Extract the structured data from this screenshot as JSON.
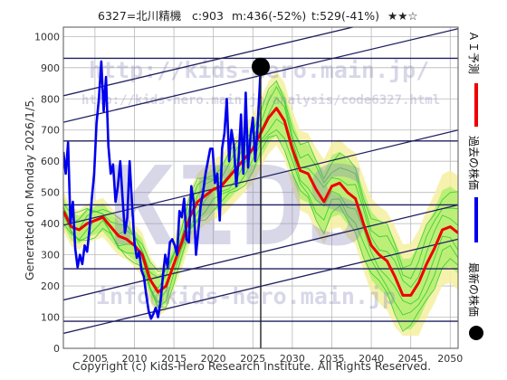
{
  "header": {
    "code_name": "6327=北川精機",
    "current": "c:903",
    "median": "m:436(-52%)",
    "target": "t:529(-41%)",
    "stars": "★★☆"
  },
  "side_label": "Generated on Monday 2026/1/5.",
  "copyright": "Copyright (c) Kids-Hero Research Institute. All Rights Reserved.",
  "watermarks": {
    "url_main": "http://kids-hero.main.jp/",
    "url_analysis": "http://kids-hero.main.jp/analysis/code6327.html",
    "big": "KIDS",
    "mail": "info@kids-hero.main.jp"
  },
  "legend": {
    "ai_forecast": "ＡＩ予測",
    "past_price": "過去の株価",
    "latest_price": "最新の株価"
  },
  "colors": {
    "ai_forecast": "#ee0000",
    "past_price": "#0000ee",
    "latest_marker": "#000000",
    "band_green": "#33cc33",
    "band_fill": "#aaee66",
    "band_yellow": "#f4f0a0",
    "channel": "#202060",
    "grid": "#b8b8b8"
  },
  "chart_data": {
    "type": "line",
    "xlim": [
      2001,
      2051
    ],
    "ylim": [
      0,
      1030
    ],
    "x_ticks": [
      2005,
      2010,
      2015,
      2020,
      2025,
      2030,
      2035,
      2040,
      2045,
      2050
    ],
    "y_ticks": [
      0,
      100,
      200,
      300,
      400,
      500,
      600,
      700,
      800,
      900,
      1000
    ],
    "grid": true,
    "current_marker": {
      "x": 2026.0,
      "y": 903
    },
    "today_x": 2026.0,
    "horizontal_levels": [
      930,
      665,
      460,
      255,
      87
    ],
    "channels": [
      {
        "x": [
          2001,
          2051
        ],
        "y": [
          810,
          1110
        ]
      },
      {
        "x": [
          2001,
          2051
        ],
        "y": [
          725,
          1025
        ]
      },
      {
        "x": [
          2001,
          2051
        ],
        "y": [
          395,
          700
        ]
      },
      {
        "x": [
          2001,
          2051
        ],
        "y": [
          155,
          460
        ]
      },
      {
        "x": [
          2001,
          2051
        ],
        "y": [
          48,
          350
        ]
      }
    ],
    "series": [
      {
        "name": "過去の株価",
        "x": [
          2001.0,
          2001.3,
          2001.6,
          2001.9,
          2002.2,
          2002.5,
          2002.8,
          2003.1,
          2003.4,
          2003.7,
          2004.0,
          2004.3,
          2004.6,
          2004.9,
          2005.2,
          2005.5,
          2005.8,
          2006.1,
          2006.4,
          2006.7,
          2007.0,
          2007.3,
          2007.6,
          2007.9,
          2008.2,
          2008.5,
          2008.8,
          2009.1,
          2009.4,
          2009.7,
          2010.0,
          2010.3,
          2010.6,
          2010.9,
          2011.2,
          2011.5,
          2011.8,
          2012.1,
          2012.4,
          2012.7,
          2013.0,
          2013.3,
          2013.6,
          2013.9,
          2014.2,
          2014.5,
          2014.8,
          2015.1,
          2015.4,
          2015.7,
          2016.0,
          2016.3,
          2016.6,
          2016.9,
          2017.2,
          2017.5,
          2017.8,
          2018.1,
          2018.4,
          2018.7,
          2019.0,
          2019.3,
          2019.6,
          2019.9,
          2020.2,
          2020.5,
          2020.8,
          2021.1,
          2021.4,
          2021.7,
          2022.0,
          2022.3,
          2022.6,
          2022.9,
          2023.2,
          2023.5,
          2023.8,
          2024.1,
          2024.4,
          2024.7,
          2025.0,
          2025.3,
          2025.6,
          2026.0
        ],
        "y": [
          630,
          560,
          660,
          400,
          470,
          320,
          260,
          300,
          270,
          330,
          310,
          380,
          480,
          560,
          720,
          800,
          920,
          760,
          870,
          650,
          560,
          590,
          470,
          520,
          600,
          480,
          370,
          420,
          600,
          460,
          340,
          290,
          310,
          250,
          230,
          170,
          120,
          95,
          110,
          130,
          100,
          150,
          230,
          300,
          260,
          340,
          350,
          330,
          300,
          440,
          420,
          480,
          350,
          340,
          520,
          470,
          300,
          380,
          460,
          500,
          560,
          600,
          640,
          640,
          530,
          560,
          410,
          640,
          690,
          800,
          600,
          700,
          650,
          520,
          610,
          750,
          560,
          820,
          580,
          680,
          740,
          600,
          710,
          903
        ]
      },
      {
        "name": "ＡＩ予測",
        "x": [
          2001.0,
          2002.0,
          2003.0,
          2004.0,
          2005.0,
          2006.0,
          2007.0,
          2008.0,
          2009.0,
          2010.0,
          2011.0,
          2012.0,
          2013.0,
          2014.0,
          2015.0,
          2016.0,
          2017.0,
          2018.0,
          2019.0,
          2020.0,
          2021.0,
          2022.0,
          2023.0,
          2024.0,
          2025.0,
          2026.0,
          2027.0,
          2028.0,
          2029.0,
          2030.0,
          2031.0,
          2032.0,
          2033.0,
          2034.0,
          2035.0,
          2036.0,
          2037.0,
          2038.0,
          2039.0,
          2040.0,
          2041.0,
          2042.0,
          2043.0,
          2044.0,
          2045.0,
          2046.0,
          2047.0,
          2048.0,
          2049.0,
          2050.0,
          2051.0
        ],
        "y": [
          440,
          390,
          380,
          400,
          410,
          420,
          390,
          360,
          350,
          330,
          300,
          220,
          180,
          200,
          270,
          340,
          420,
          470,
          490,
          510,
          520,
          550,
          580,
          610,
          640,
          690,
          740,
          770,
          730,
          640,
          570,
          560,
          510,
          470,
          520,
          530,
          500,
          480,
          400,
          330,
          300,
          280,
          230,
          170,
          170,
          210,
          270,
          320,
          380,
          390,
          370
        ]
      }
    ]
  }
}
